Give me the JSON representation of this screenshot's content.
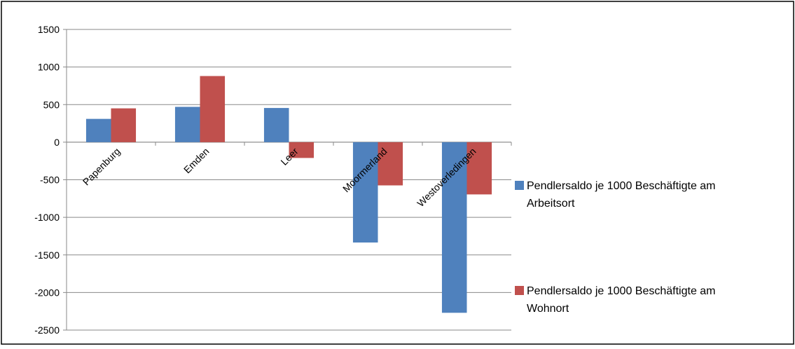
{
  "chart_data": {
    "type": "bar",
    "categories": [
      "Papenburg",
      "Emden",
      "Leer",
      "Moormerland",
      "Westoverledingen"
    ],
    "series": [
      {
        "name": "Pendlersaldo je 1000 Beschäftigte am Arbeitsort",
        "name_lines": [
          "Pendlersaldo je 1000 Beschäftigte am",
          "Arbeitsort"
        ],
        "color": "#4F81BD",
        "values": [
          310,
          470,
          455,
          -1335,
          -2270
        ]
      },
      {
        "name": "Pendlersaldo je 1000 Beschäftigte am Wohnort",
        "name_lines": [
          "Pendlersaldo je 1000 Beschäftigte am",
          "Wohnort"
        ],
        "color": "#C0504D",
        "values": [
          450,
          880,
          -210,
          -575,
          -695
        ]
      }
    ],
    "ylim": [
      -2500,
      1500
    ],
    "yticks": [
      "1500",
      "1000",
      "500",
      "0",
      "-500",
      "-1000",
      "-1500",
      "-2000",
      "-2500"
    ],
    "grid": true,
    "legend_position": "right",
    "title": "",
    "xlabel": "",
    "ylabel": ""
  }
}
